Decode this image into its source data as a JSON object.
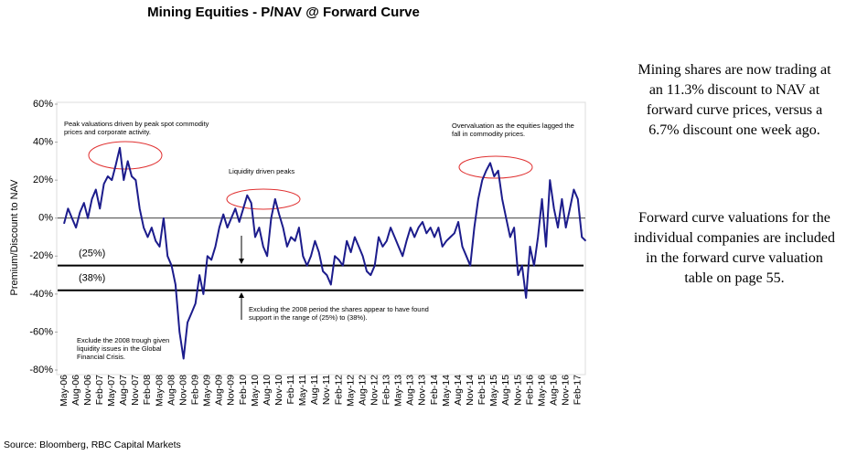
{
  "chart_data": {
    "type": "line",
    "title": "Mining Equities - P/NAV @ Forward Curve",
    "ylabel": "Premium/Discount to NAV",
    "categories": [
      "May-06",
      null,
      null,
      "Aug-06",
      null,
      null,
      "Nov-06",
      null,
      null,
      "Feb-07",
      null,
      null,
      "May-07",
      null,
      null,
      "Aug-07",
      null,
      null,
      "Nov-07",
      null,
      null,
      "Feb-08",
      null,
      null,
      "May-08",
      null,
      null,
      "Aug-08",
      null,
      null,
      "Nov-08",
      null,
      null,
      "Feb-09",
      null,
      null,
      "May-09",
      null,
      null,
      "Aug-09",
      null,
      null,
      "Nov-09",
      null,
      null,
      "Feb-10",
      null,
      null,
      "May-10",
      null,
      null,
      "Aug-10",
      null,
      null,
      "Nov-10",
      null,
      null,
      "Feb-11",
      null,
      null,
      "May-11",
      null,
      null,
      "Aug-11",
      null,
      null,
      "Nov-11",
      null,
      null,
      "Feb-12",
      null,
      null,
      "May-12",
      null,
      null,
      "Aug-12",
      null,
      null,
      "Nov-12",
      null,
      null,
      "Feb-13",
      null,
      null,
      "May-13",
      null,
      null,
      "Aug-13",
      null,
      null,
      "Nov-13",
      null,
      null,
      "Feb-14",
      null,
      null,
      "May-14",
      null,
      null,
      "Aug-14",
      null,
      null,
      "Nov-14",
      null,
      null,
      "Feb-15",
      null,
      null,
      "May-15",
      null,
      null,
      "Aug-15",
      null,
      null,
      "Nov-15",
      null,
      null,
      "Feb-16",
      null,
      null,
      "May-16",
      null,
      null,
      "Aug-16",
      null,
      null,
      "Nov-16",
      null,
      null,
      "Feb-17",
      null,
      null
    ],
    "values": [
      -3,
      5,
      0,
      -5,
      3,
      8,
      0,
      10,
      15,
      5,
      18,
      22,
      20,
      28,
      37,
      20,
      30,
      22,
      20,
      5,
      -5,
      -10,
      -5,
      -12,
      -15,
      0,
      -20,
      -25,
      -35,
      -60,
      -74,
      -55,
      -50,
      -45,
      -30,
      -40,
      -20,
      -22,
      -15,
      -5,
      2,
      -5,
      0,
      5,
      -2,
      5,
      12,
      8,
      -10,
      -5,
      -15,
      -20,
      0,
      10,
      2,
      -5,
      -15,
      -10,
      -12,
      -5,
      -20,
      -25,
      -20,
      -12,
      -18,
      -28,
      -30,
      -35,
      -20,
      -22,
      -25,
      -12,
      -18,
      -10,
      -15,
      -20,
      -28,
      -30,
      -25,
      -10,
      -15,
      -12,
      -5,
      -10,
      -15,
      -20,
      -12,
      -5,
      -10,
      -5,
      -2,
      -8,
      -5,
      -10,
      -5,
      -15,
      -12,
      -10,
      -8,
      -2,
      -15,
      -20,
      -25,
      -5,
      10,
      20,
      25,
      29,
      22,
      25,
      10,
      0,
      -10,
      -5,
      -30,
      -25,
      -42,
      -15,
      -25,
      -10,
      10,
      -15,
      20,
      5,
      -5,
      10,
      -5,
      5,
      15,
      10,
      -10,
      -12
    ],
    "color": "#1c1c8c",
    "ylim": [
      -80,
      60
    ],
    "yticks": [
      {
        "value": -80,
        "label": "-80%"
      },
      {
        "value": -60,
        "label": "-60%"
      },
      {
        "value": -40,
        "label": "-40%"
      },
      {
        "value": -20,
        "label": "-20%"
      },
      {
        "value": 0,
        "label": "0%"
      },
      {
        "value": 20,
        "label": "20%"
      },
      {
        "value": 40,
        "label": "40%"
      },
      {
        "value": 60,
        "label": "60%"
      }
    ],
    "reference_lines": [
      {
        "value": -25,
        "label": "(25%)"
      },
      {
        "value": -38,
        "label": "(38%)"
      }
    ],
    "annotations": [
      "Peak valuations driven by peak spot commodity prices and corporate activity.",
      "Liquidity driven peaks",
      "Overvaluation as the equities lagged the fall in commodity prices.",
      "Excluding the 2008 period the shares appear to have found support in the range of (25%) to (38%).",
      "Exclude the 2008 trough given liquidity issues in the Global Financial Crisis."
    ],
    "source": "Source: Bloomberg, RBC Capital Markets"
  },
  "side_text": [
    "Mining shares are now trading at an 11.3% discount to NAV at forward curve prices, versus a 6.7% discount one week ago.",
    "Forward curve valuations for the individual companies are included in the forward curve valuation table on page 55."
  ]
}
